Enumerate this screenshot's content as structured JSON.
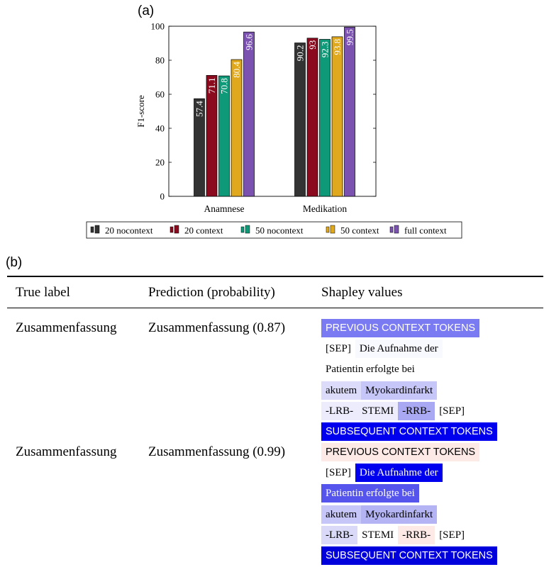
{
  "panel_a_label": "(a)",
  "panel_b_label": "(b)",
  "chart_data": {
    "type": "bar",
    "categories": [
      "Anamnese",
      "Medikation"
    ],
    "series": [
      {
        "name": "20 nocontext",
        "color": "#333333",
        "values": [
          57.4,
          90.2
        ],
        "labels": [
          "57.4",
          "90.2"
        ]
      },
      {
        "name": "20 context",
        "color": "#8b0a1e",
        "values": [
          71.1,
          93.0
        ],
        "labels": [
          "71.1",
          "93"
        ]
      },
      {
        "name": "50 nocontext",
        "color": "#0e9a78",
        "values": [
          70.8,
          92.3
        ],
        "labels": [
          "70.8",
          "92.3"
        ]
      },
      {
        "name": "50 context",
        "color": "#e0a81c",
        "values": [
          80.4,
          93.8
        ],
        "labels": [
          "80.4",
          "93.8"
        ]
      },
      {
        "name": "full context",
        "color": "#7b52b0",
        "values": [
          96.6,
          99.5
        ],
        "labels": [
          "96.6",
          "99.5"
        ]
      }
    ],
    "ylabel": "F1-score",
    "ylim": [
      0,
      100
    ],
    "yticks": [
      "0",
      "20",
      "40",
      "60",
      "80",
      "100"
    ],
    "legend_position": "bottom"
  },
  "table": {
    "headers": {
      "true_label": "True label",
      "prediction": "Prediction (probability)",
      "shapley": "Shapley values"
    },
    "rows": [
      {
        "true_label": "Zusammenfassung",
        "prediction": "Zusammenfassung (0.87)",
        "lines": [
          [
            {
              "text": "PREVIOUS CONTEXT TOKENS",
              "bg": "#7a7af2",
              "fg": "#ffffff",
              "sans": true
            }
          ],
          [
            {
              "text": "[SEP]",
              "bg": "#ffffff",
              "fg": "#000000"
            },
            {
              "text": "Die Aufnahme der",
              "bg": "#f8f8ff",
              "fg": "#000000"
            }
          ],
          [
            {
              "text": "Patientin erfolgte bei",
              "bg": "#ffffff",
              "fg": "#000000"
            }
          ],
          [
            {
              "text": "akutem",
              "bg": "#dcdcfa",
              "fg": "#000000"
            },
            {
              "text": "Myokardinfarkt",
              "bg": "#c6c6f8",
              "fg": "#000000"
            }
          ],
          [
            {
              "text": "-LRB-",
              "bg": "#ececfd",
              "fg": "#000000"
            },
            {
              "text": "STEMI",
              "bg": "#ececfd",
              "fg": "#000000"
            },
            {
              "text": "-RRB-",
              "bg": "#a8a8f3",
              "fg": "#000000"
            },
            {
              "text": "[SEP]",
              "bg": "#ffffff",
              "fg": "#000000"
            }
          ],
          [
            {
              "text": "SUBSEQUENT CONTEXT TOKENS",
              "bg": "#0000ee",
              "fg": "#ffffff",
              "sans": true
            }
          ]
        ]
      },
      {
        "true_label": "Zusammenfassung",
        "prediction": "Zusammenfassung (0.99)",
        "lines": [
          [
            {
              "text": "PREVIOUS CONTEXT TOKENS",
              "bg": "#fde9e6",
              "fg": "#000000",
              "sans": true
            }
          ],
          [
            {
              "text": "[SEP]",
              "bg": "#ffffff",
              "fg": "#000000"
            },
            {
              "text": "Die Aufnahme der",
              "bg": "#0000ee",
              "fg": "#ffffff"
            }
          ],
          [
            {
              "text": "Patientin erfolgte bei",
              "bg": "#5555ee",
              "fg": "#ffffff"
            }
          ],
          [
            {
              "text": "akutem",
              "bg": "#c6c6f8",
              "fg": "#000000"
            },
            {
              "text": "Myokardinfarkt",
              "bg": "#b4b4f5",
              "fg": "#000000"
            }
          ],
          [
            {
              "text": "-LRB-",
              "bg": "#dadaf8",
              "fg": "#000000"
            },
            {
              "text": "STEMI",
              "bg": "#ffffff",
              "fg": "#000000"
            },
            {
              "text": "-RRB-",
              "bg": "#fde9e6",
              "fg": "#000000"
            },
            {
              "text": "[SEP]",
              "bg": "#ffffff",
              "fg": "#000000"
            }
          ],
          [
            {
              "text": "SUBSEQUENT CONTEXT TOKENS",
              "bg": "#0000dd",
              "fg": "#ffffff",
              "sans": true
            }
          ]
        ]
      }
    ]
  }
}
